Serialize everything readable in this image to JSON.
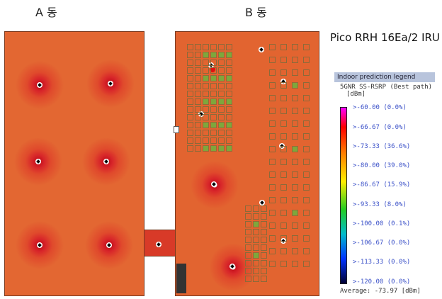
{
  "buildings": {
    "a_label": "A 동",
    "b_label": "B 동"
  },
  "diagram_title": "Pico RRH 16Ea/2 IRU",
  "legend": {
    "header": "Indoor prediction legend",
    "metric": "5GNR SS-RSRP (Best path)",
    "unit": "[dBm]",
    "rows": [
      ">-60.00 (0.0%)",
      ">-66.67 (0.0%)",
      ">-73.33 (36.6%)",
      ">-80.00 (39.0%)",
      ">-86.67 (15.9%)",
      ">-93.33 (8.0%)",
      ">-100.00 (0.1%)",
      ">-106.67 (0.0%)",
      ">-113.33 (0.0%)",
      ">-120.00 (0.0%)"
    ],
    "average": "Average: -73.97 [dBm]"
  }
}
